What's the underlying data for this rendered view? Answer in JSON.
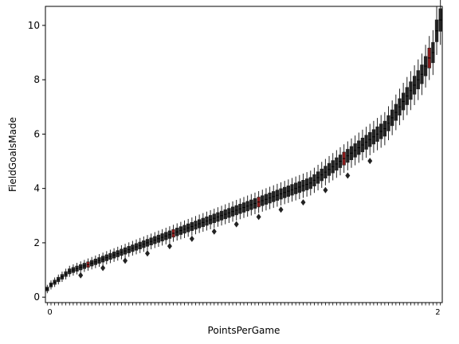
{
  "chart_data": {
    "type": "box",
    "xlabel": "PointsPerGame",
    "ylabel": "FieldGoalsMade",
    "ylim": [
      -0.2,
      10.7
    ],
    "yticks": [
      0,
      2,
      4,
      6,
      8,
      10
    ],
    "x_tick_label_first": "0",
    "x_tick_label_last": "2",
    "box_color": "#222222",
    "accent_color": "#8b1a1a",
    "series": [
      {
        "values": [
          0.3,
          0.45,
          0.55,
          0.65,
          0.75,
          0.85,
          0.95,
          1.0,
          1.05,
          1.1,
          1.15,
          1.2,
          1.25,
          1.3,
          1.35,
          1.4,
          1.45,
          1.5,
          1.55,
          1.6,
          1.65,
          1.7,
          1.75,
          1.8,
          1.85,
          1.9,
          1.95,
          2.0,
          2.05,
          2.1,
          2.15,
          2.2,
          2.25,
          2.3,
          2.35,
          2.4,
          2.45,
          2.5,
          2.55,
          2.6,
          2.65,
          2.7,
          2.75,
          2.8,
          2.85,
          2.9,
          2.95,
          3.0,
          3.05,
          3.1,
          3.15,
          3.2,
          3.25,
          3.3,
          3.35,
          3.4,
          3.45,
          3.5,
          3.55,
          3.6,
          3.65,
          3.7,
          3.75,
          3.8,
          3.85,
          3.9,
          3.95,
          4.0,
          4.05,
          4.1,
          4.15,
          4.2,
          4.3,
          4.4,
          4.5,
          4.6,
          4.7,
          4.8,
          4.9,
          5.0,
          5.1,
          5.2,
          5.3,
          5.4,
          5.5,
          5.6,
          5.7,
          5.8,
          5.9,
          6.0,
          6.1,
          6.2,
          6.4,
          6.6,
          6.8,
          7.0,
          7.2,
          7.4,
          7.6,
          7.8,
          8.0,
          8.2,
          8.5,
          8.8,
          9.0,
          9.8,
          10.2
        ]
      }
    ]
  }
}
